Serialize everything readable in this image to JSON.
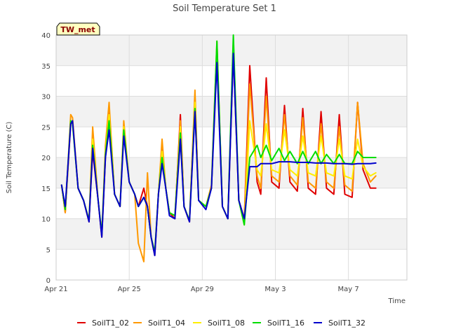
{
  "chart_data": {
    "type": "line",
    "title": "Soil Temperature Set 1",
    "xlabel": "Time",
    "ylabel": "Soil Temperature (C)",
    "badge": "TW_met",
    "xlim": [
      0,
      19.2
    ],
    "ylim": [
      0,
      40
    ],
    "x_ticks": [
      {
        "x": 0,
        "label": "Apr 21"
      },
      {
        "x": 4,
        "label": "Apr 25"
      },
      {
        "x": 8,
        "label": "Apr 29"
      },
      {
        "x": 12,
        "label": "May 3"
      },
      {
        "x": 16,
        "label": "May 7"
      }
    ],
    "y_ticks": [
      0,
      5,
      10,
      15,
      20,
      25,
      30,
      35,
      40
    ],
    "grid": true,
    "legend_position": "bottom",
    "series": [
      {
        "name": "SoilT1_02",
        "color": "#e00000",
        "x": [
          0.3,
          0.5,
          0.8,
          0.9,
          1.2,
          1.5,
          1.8,
          2.0,
          2.3,
          2.5,
          2.7,
          2.9,
          3.2,
          3.5,
          3.7,
          4.0,
          4.3,
          4.5,
          4.8,
          5.0,
          5.2,
          5.4,
          5.6,
          5.8,
          6.0,
          6.2,
          6.5,
          6.8,
          7.0,
          7.3,
          7.6,
          7.8,
          8.2,
          8.5,
          8.8,
          9.1,
          9.4,
          9.7,
          10.0,
          10.3,
          10.6,
          11.0,
          11.2,
          11.5,
          11.8,
          12.2,
          12.5,
          12.8,
          13.2,
          13.5,
          13.8,
          14.2,
          14.5,
          14.8,
          15.2,
          15.5,
          15.8,
          16.2,
          16.5,
          16.8,
          17.2,
          17.5
        ],
        "y": [
          15.5,
          11,
          25.5,
          26,
          15,
          13,
          9.5,
          21,
          13,
          7,
          20,
          28,
          14,
          12,
          25,
          16,
          14,
          12,
          15,
          12,
          7,
          4,
          14,
          22,
          15,
          11,
          10,
          27,
          12,
          9.5,
          30,
          13,
          12,
          15,
          38,
          12,
          10,
          37,
          13,
          10,
          35,
          16,
          14,
          33,
          16,
          15,
          28.5,
          16,
          14.5,
          28,
          15,
          14,
          27.5,
          15,
          14,
          27,
          14,
          13.5,
          29,
          18,
          15,
          15
        ]
      },
      {
        "name": "SoilT1_04",
        "color": "#ff9900",
        "x": [
          0.3,
          0.5,
          0.8,
          0.9,
          1.2,
          1.5,
          1.8,
          2.0,
          2.3,
          2.5,
          2.7,
          2.9,
          3.2,
          3.5,
          3.7,
          4.0,
          4.3,
          4.5,
          4.8,
          5.0,
          5.2,
          5.4,
          5.6,
          5.8,
          6.0,
          6.2,
          6.5,
          6.8,
          7.0,
          7.3,
          7.6,
          7.8,
          8.2,
          8.5,
          8.8,
          9.1,
          9.4,
          9.7,
          10.0,
          10.3,
          10.6,
          11.0,
          11.2,
          11.5,
          11.8,
          12.2,
          12.5,
          12.8,
          13.2,
          13.5,
          13.8,
          14.2,
          14.5,
          14.8,
          15.2,
          15.5,
          15.8,
          16.2,
          16.5,
          16.8,
          17.2,
          17.5
        ],
        "y": [
          15.5,
          11,
          27,
          26.5,
          15,
          13,
          9.8,
          25,
          13,
          7.5,
          22,
          29,
          14,
          12,
          26,
          16,
          14,
          6,
          3,
          17.5,
          7,
          4.5,
          14,
          23,
          15,
          11,
          10.5,
          26,
          12,
          9.7,
          31,
          13,
          12,
          15.5,
          39,
          12,
          10,
          39,
          13,
          10,
          32,
          17,
          15,
          30,
          17,
          16,
          27,
          17,
          15.5,
          26.5,
          16,
          15,
          25.5,
          16,
          15,
          25,
          15.5,
          14.5,
          29,
          19,
          16,
          17
        ]
      },
      {
        "name": "SoilT1_08",
        "color": "#ffee00",
        "x": [
          0.3,
          0.5,
          0.8,
          0.9,
          1.2,
          1.5,
          1.8,
          2.0,
          2.3,
          2.5,
          2.7,
          2.9,
          3.2,
          3.5,
          3.7,
          4.0,
          4.3,
          4.5,
          4.8,
          5.0,
          5.2,
          5.4,
          5.6,
          5.8,
          6.0,
          6.2,
          6.5,
          6.8,
          7.0,
          7.3,
          7.6,
          7.8,
          8.2,
          8.5,
          8.8,
          9.1,
          9.4,
          9.7,
          10.0,
          10.3,
          10.6,
          11.0,
          11.2,
          11.5,
          11.8,
          12.2,
          12.5,
          12.8,
          13.2,
          13.5,
          13.8,
          14.2,
          14.5,
          14.8,
          15.2,
          15.5,
          15.8,
          16.2,
          16.5,
          16.8,
          17.2,
          17.5
        ],
        "y": [
          15.5,
          11.5,
          26,
          25.5,
          15,
          13,
          9.7,
          23,
          13,
          7.5,
          21,
          27,
          14,
          12,
          25,
          16,
          14,
          12,
          13.5,
          12,
          7,
          4.5,
          14,
          21,
          15,
          11,
          10.5,
          25,
          12,
          9.7,
          29,
          13,
          12,
          15,
          37,
          12,
          10,
          38,
          13,
          9,
          26,
          18,
          17,
          25.5,
          18,
          17.5,
          24.5,
          18,
          17,
          23.5,
          17.5,
          17,
          23.5,
          17.5,
          17,
          23,
          17,
          16.5,
          23,
          18.5,
          17,
          17.5
        ]
      },
      {
        "name": "SoilT1_16",
        "color": "#00dd00",
        "x": [
          0.3,
          0.5,
          0.8,
          0.9,
          1.2,
          1.5,
          1.8,
          2.0,
          2.3,
          2.5,
          2.7,
          2.9,
          3.2,
          3.5,
          3.7,
          4.0,
          4.3,
          4.5,
          4.8,
          5.0,
          5.2,
          5.4,
          5.6,
          5.8,
          6.0,
          6.2,
          6.5,
          6.8,
          7.0,
          7.3,
          7.6,
          7.8,
          8.2,
          8.5,
          8.8,
          9.1,
          9.4,
          9.7,
          10.0,
          10.3,
          10.6,
          11.0,
          11.2,
          11.5,
          11.8,
          12.2,
          12.5,
          12.8,
          13.2,
          13.5,
          13.8,
          14.2,
          14.5,
          14.8,
          15.2,
          15.5,
          15.8,
          16.2,
          16.5,
          16.8,
          17.2,
          17.5
        ],
        "y": [
          15.5,
          11.5,
          26,
          25.5,
          15,
          13,
          9.7,
          22,
          13,
          7.5,
          20.5,
          26,
          14,
          12,
          24.5,
          16,
          14,
          12,
          13.5,
          12,
          7,
          4.5,
          14,
          20,
          15,
          11,
          10.5,
          24,
          12,
          9.7,
          28,
          13,
          12,
          15,
          39,
          12,
          10,
          40,
          13,
          9,
          20,
          22,
          20,
          22,
          19.5,
          21.5,
          19.5,
          21,
          19,
          21,
          19,
          21,
          19,
          20.5,
          19,
          20.5,
          19,
          19,
          21,
          20,
          20,
          20
        ]
      },
      {
        "name": "SoilT1_32",
        "color": "#0000cc",
        "x": [
          0.3,
          0.5,
          0.8,
          0.9,
          1.2,
          1.5,
          1.8,
          2.0,
          2.3,
          2.5,
          2.7,
          2.9,
          3.2,
          3.5,
          3.7,
          4.0,
          4.3,
          4.5,
          4.8,
          5.0,
          5.2,
          5.4,
          5.6,
          5.8,
          6.0,
          6.2,
          6.5,
          6.8,
          7.0,
          7.3,
          7.6,
          7.8,
          8.2,
          8.5,
          8.8,
          9.1,
          9.4,
          9.7,
          10.0,
          10.3,
          10.6,
          11.0,
          11.2,
          11.5,
          11.8,
          12.2,
          12.5,
          12.8,
          13.2,
          13.5,
          13.8,
          14.2,
          14.5,
          14.8,
          15.2,
          15.5,
          15.8,
          16.2,
          16.5,
          16.8,
          17.2,
          17.5
        ],
        "y": [
          15.5,
          12,
          25.5,
          26,
          15,
          13,
          9.5,
          21.5,
          13,
          7,
          20,
          24.5,
          14,
          12,
          23.5,
          16,
          14,
          12,
          13.5,
          12,
          7,
          4,
          14,
          19,
          15,
          10.5,
          10,
          23,
          12,
          9.5,
          27.5,
          13,
          11.5,
          15,
          35.5,
          12,
          10,
          37,
          13,
          10,
          18.5,
          18.5,
          19,
          19,
          19,
          19.3,
          19.3,
          19.3,
          19.2,
          19.2,
          19.2,
          19.1,
          19.1,
          19.1,
          19,
          19,
          19,
          18.9,
          19,
          19,
          19,
          19.1
        ]
      }
    ]
  }
}
